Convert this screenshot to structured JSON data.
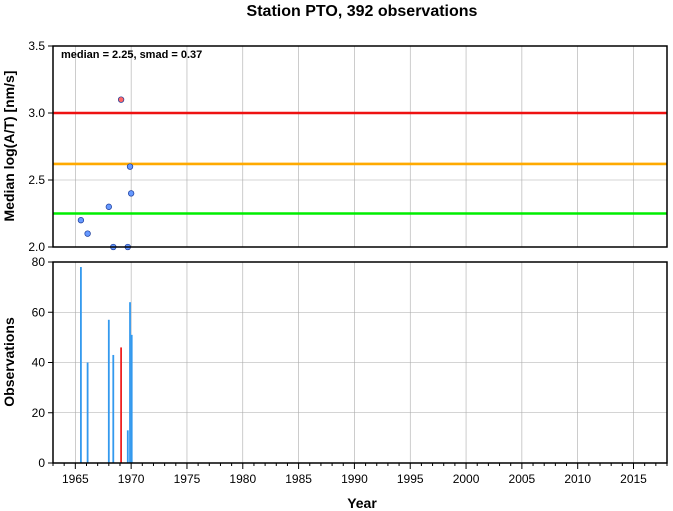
{
  "chart_data": [
    {
      "type": "scatter",
      "title": "Station PTO, 392 observations",
      "annotation": "median = 2.25, smad = 0.37",
      "ylabel": "Median log(A/T) [nm/s]",
      "xlim": [
        1963,
        2018
      ],
      "ylim": [
        2.0,
        3.5
      ],
      "y_ticks": [
        "2.0",
        "2.5",
        "3.0",
        "3.5"
      ],
      "grid": true,
      "reference_lines": [
        {
          "y": 2.25,
          "color": "#00ee00"
        },
        {
          "y": 2.62,
          "color": "#ffaa00"
        },
        {
          "y": 3.0,
          "color": "#ee1111"
        }
      ],
      "points": [
        {
          "x": 1965.5,
          "y": 2.2,
          "color": "#6699ff"
        },
        {
          "x": 1966.1,
          "y": 2.1,
          "color": "#6699ff"
        },
        {
          "x": 1968.0,
          "y": 2.3,
          "color": "#6699ff"
        },
        {
          "x": 1968.4,
          "y": 2.0,
          "color": "#6699ff"
        },
        {
          "x": 1969.1,
          "y": 3.1,
          "color": "#ff6666"
        },
        {
          "x": 1969.7,
          "y": 2.0,
          "color": "#6699ff"
        },
        {
          "x": 1969.9,
          "y": 2.6,
          "color": "#6699ff"
        },
        {
          "x": 1970.0,
          "y": 2.4,
          "color": "#6699ff"
        }
      ]
    },
    {
      "type": "bar",
      "ylabel": "Observations",
      "xlabel": "Year",
      "xlim": [
        1963,
        2018
      ],
      "ylim": [
        0,
        80
      ],
      "x_ticks": [
        "1965",
        "1970",
        "1975",
        "1980",
        "1985",
        "1990",
        "1995",
        "2000",
        "2005",
        "2010",
        "2015"
      ],
      "y_ticks": [
        "0",
        "20",
        "40",
        "60",
        "80"
      ],
      "grid": true,
      "bars": [
        {
          "x": 1965.5,
          "value": 78,
          "color": "#3399ee"
        },
        {
          "x": 1966.1,
          "value": 40,
          "color": "#3399ee"
        },
        {
          "x": 1968.0,
          "value": 57,
          "color": "#3399ee"
        },
        {
          "x": 1968.4,
          "value": 43,
          "color": "#3399ee"
        },
        {
          "x": 1969.1,
          "value": 46,
          "color": "#ee2222"
        },
        {
          "x": 1969.7,
          "value": 13,
          "color": "#3399ee"
        },
        {
          "x": 1969.9,
          "value": 64,
          "color": "#3399ee"
        },
        {
          "x": 1970.05,
          "value": 51,
          "color": "#3399ee"
        }
      ]
    }
  ]
}
